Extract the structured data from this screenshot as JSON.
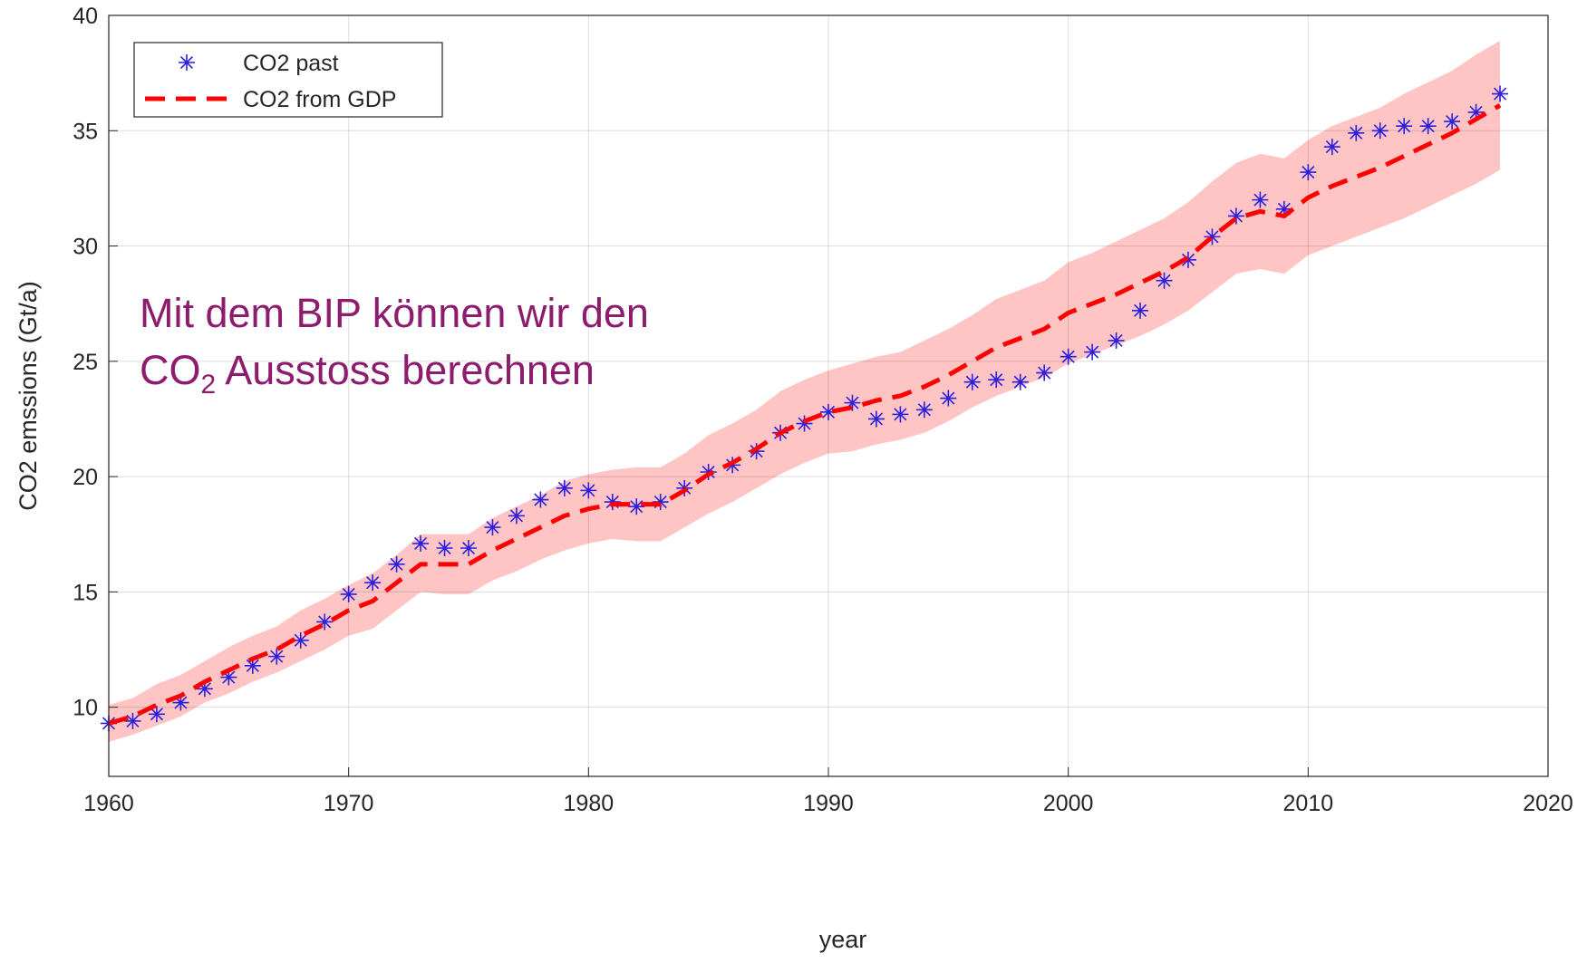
{
  "chart_data": {
    "type": "line",
    "xlabel": "year",
    "ylabel": "CO2 emssions (Gt/a)",
    "annotation": {
      "line1": "Mit dem BIP können wir den",
      "line2_pre": "CO",
      "line2_sub": "2",
      "line2_post": " Ausstoss berechnen",
      "color": "#8e1c6e"
    },
    "x": [
      1960,
      1961,
      1962,
      1963,
      1964,
      1965,
      1966,
      1967,
      1968,
      1969,
      1970,
      1971,
      1972,
      1973,
      1974,
      1975,
      1976,
      1977,
      1978,
      1979,
      1980,
      1981,
      1982,
      1983,
      1984,
      1985,
      1986,
      1987,
      1988,
      1989,
      1990,
      1991,
      1992,
      1993,
      1994,
      1995,
      1996,
      1997,
      1998,
      1999,
      2000,
      2001,
      2002,
      2003,
      2004,
      2005,
      2006,
      2007,
      2008,
      2009,
      2010,
      2011,
      2012,
      2013,
      2014,
      2015,
      2016,
      2017,
      2018
    ],
    "series": [
      {
        "name": "CO2 past",
        "color": "#2b1fe0",
        "style": "markers",
        "values": [
          9.3,
          9.4,
          9.7,
          10.2,
          10.8,
          11.3,
          11.8,
          12.2,
          12.9,
          13.7,
          14.9,
          15.4,
          16.2,
          17.1,
          16.9,
          16.9,
          17.8,
          18.3,
          19.0,
          19.5,
          19.4,
          18.9,
          18.7,
          18.9,
          19.5,
          20.2,
          20.5,
          21.1,
          21.9,
          22.3,
          22.8,
          23.2,
          22.5,
          22.7,
          22.9,
          23.4,
          24.1,
          24.2,
          24.1,
          24.5,
          25.2,
          25.4,
          25.9,
          27.2,
          28.5,
          29.4,
          30.4,
          31.3,
          32.0,
          31.6,
          33.2,
          34.3,
          34.9,
          35.0,
          35.2,
          35.2,
          35.4,
          35.8,
          36.6
        ]
      },
      {
        "name": "CO2 from GDP",
        "color": "#ff0000",
        "style": "dashed",
        "values": [
          9.3,
          9.6,
          10.1,
          10.5,
          11.1,
          11.6,
          12.1,
          12.5,
          13.1,
          13.6,
          14.2,
          14.6,
          15.4,
          16.2,
          16.2,
          16.2,
          16.8,
          17.3,
          17.8,
          18.3,
          18.6,
          18.8,
          18.8,
          18.8,
          19.4,
          20.1,
          20.6,
          21.2,
          21.9,
          22.4,
          22.8,
          23.0,
          23.3,
          23.5,
          23.9,
          24.4,
          25.0,
          25.6,
          26.0,
          26.4,
          27.1,
          27.5,
          27.9,
          28.4,
          28.9,
          29.5,
          30.4,
          31.2,
          31.5,
          31.3,
          32.1,
          32.6,
          33.0,
          33.4,
          33.9,
          34.4,
          34.9,
          35.5,
          36.1
        ]
      }
    ],
    "band": {
      "color": "#ffc4c4",
      "lower": [
        8.5,
        8.8,
        9.2,
        9.6,
        10.2,
        10.6,
        11.1,
        11.5,
        12.0,
        12.5,
        13.1,
        13.4,
        14.2,
        15.0,
        14.9,
        14.9,
        15.5,
        15.9,
        16.4,
        16.8,
        17.1,
        17.3,
        17.2,
        17.2,
        17.8,
        18.4,
        18.9,
        19.5,
        20.1,
        20.6,
        21.0,
        21.1,
        21.4,
        21.6,
        21.9,
        22.4,
        23.0,
        23.5,
        23.9,
        24.3,
        24.9,
        25.3,
        25.7,
        26.1,
        26.6,
        27.2,
        28.0,
        28.8,
        29.0,
        28.8,
        29.6,
        30.0,
        30.4,
        30.8,
        31.2,
        31.7,
        32.2,
        32.7,
        33.3
      ],
      "upper": [
        10.1,
        10.4,
        11.0,
        11.4,
        12.0,
        12.6,
        13.1,
        13.5,
        14.2,
        14.7,
        15.3,
        15.8,
        16.6,
        17.5,
        17.5,
        17.5,
        18.2,
        18.7,
        19.2,
        19.8,
        20.1,
        20.3,
        20.4,
        20.4,
        21.0,
        21.8,
        22.3,
        22.9,
        23.7,
        24.2,
        24.6,
        24.9,
        25.2,
        25.4,
        25.9,
        26.4,
        27.0,
        27.7,
        28.1,
        28.5,
        29.3,
        29.7,
        30.2,
        30.7,
        31.2,
        31.9,
        32.8,
        33.6,
        34.0,
        33.8,
        34.6,
        35.2,
        35.6,
        36.0,
        36.6,
        37.1,
        37.6,
        38.3,
        38.9
      ]
    },
    "xlim": [
      1960,
      2020
    ],
    "xticks": [
      1960,
      1970,
      1980,
      1990,
      2000,
      2010,
      2020
    ],
    "ylim": [
      7,
      40
    ],
    "yticks": [
      10,
      15,
      20,
      25,
      30,
      35,
      40
    ],
    "grid": true,
    "legend": "northwest"
  }
}
